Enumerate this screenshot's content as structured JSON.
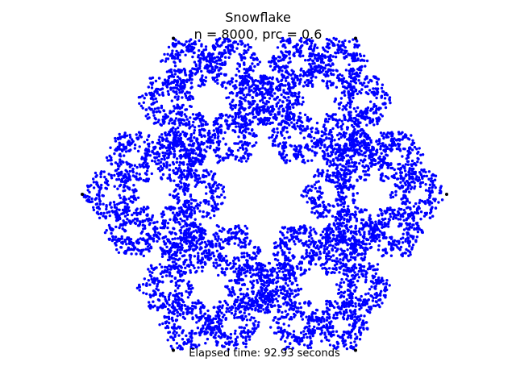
{
  "chart_data": {
    "type": "scatter",
    "title": "Snowflake",
    "subtitle": "n = 8000, prc = 0.6",
    "point_color": "#0000ff",
    "vertex_color": "#000000",
    "xlim": [
      -1.0,
      1.0
    ],
    "ylim": [
      -0.866,
      0.866
    ],
    "axes": "off",
    "grid": false,
    "n": 8000,
    "prc": 0.6,
    "vertices": [
      {
        "x": 1.0,
        "y": 0.0
      },
      {
        "x": 0.5,
        "y": 0.866
      },
      {
        "x": -0.5,
        "y": 0.866
      },
      {
        "x": -1.0,
        "y": 0.0
      },
      {
        "x": -0.5,
        "y": -0.866
      },
      {
        "x": 0.5,
        "y": -0.866
      }
    ]
  },
  "footer": {
    "elapsed": "Elapsed time: 92.93 seconds"
  }
}
